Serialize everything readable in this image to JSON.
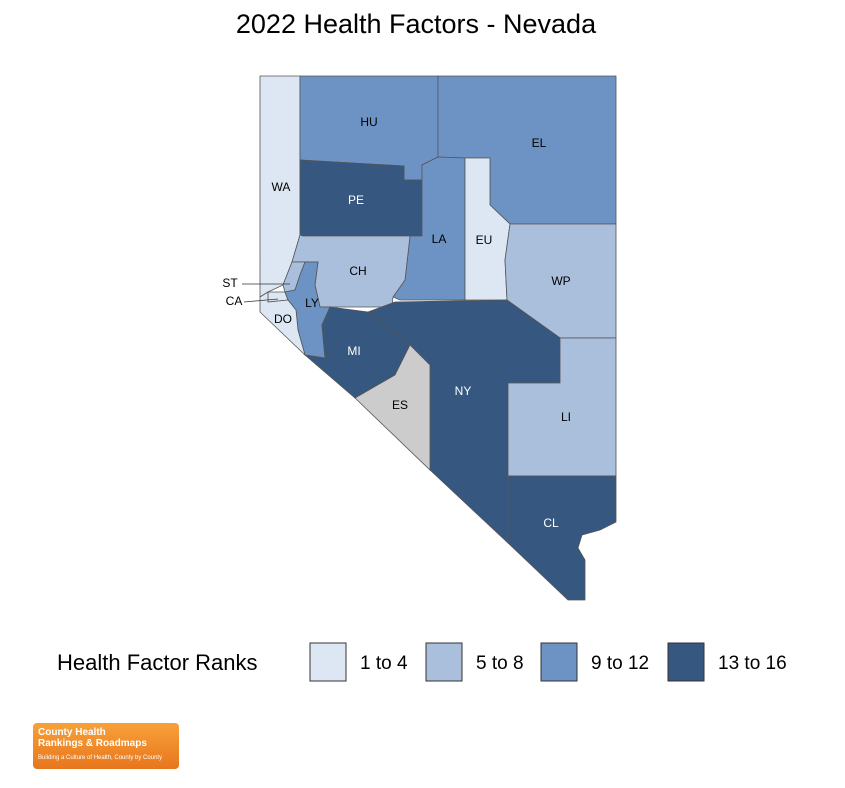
{
  "title": "2022 Health Factors - Nevada",
  "counties": [
    {
      "label": "WA",
      "color": "#dde7f3"
    },
    {
      "label": "HU",
      "color": "#6d93c4"
    },
    {
      "label": "PE",
      "color": "#36577f"
    },
    {
      "label": "EL",
      "color": "#6d93c4"
    },
    {
      "label": "LA",
      "color": "#6d93c4"
    },
    {
      "label": "EU",
      "color": "#dde7f3"
    },
    {
      "label": "CH",
      "color": "#aabfdc"
    },
    {
      "label": "WP",
      "color": "#aabfdc"
    },
    {
      "label": "ST",
      "color": "#aabfdc"
    },
    {
      "label": "CA",
      "color": "#dde7f3"
    },
    {
      "label": "LY",
      "color": "#6d93c4"
    },
    {
      "label": "DO",
      "color": "#dde7f3"
    },
    {
      "label": "MI",
      "color": "#36577f"
    },
    {
      "label": "NY",
      "color": "#36577f"
    },
    {
      "label": "ES",
      "color": "#cccccc"
    },
    {
      "label": "LI",
      "color": "#aabfdc"
    },
    {
      "label": "CL",
      "color": "#36577f"
    }
  ],
  "legend": {
    "title": "Health Factor Ranks",
    "bins": [
      {
        "label": "1 to 4",
        "color": "#dde7f3"
      },
      {
        "label": "5 to 8",
        "color": "#aabfdc"
      },
      {
        "label": "9 to 12",
        "color": "#6d93c4"
      },
      {
        "label": "13 to 16",
        "color": "#36577f"
      }
    ]
  },
  "logo": {
    "line1": "County Health",
    "line2": "Rankings & Roadmaps",
    "tagline": "Building a Culture of Health, County by County"
  }
}
